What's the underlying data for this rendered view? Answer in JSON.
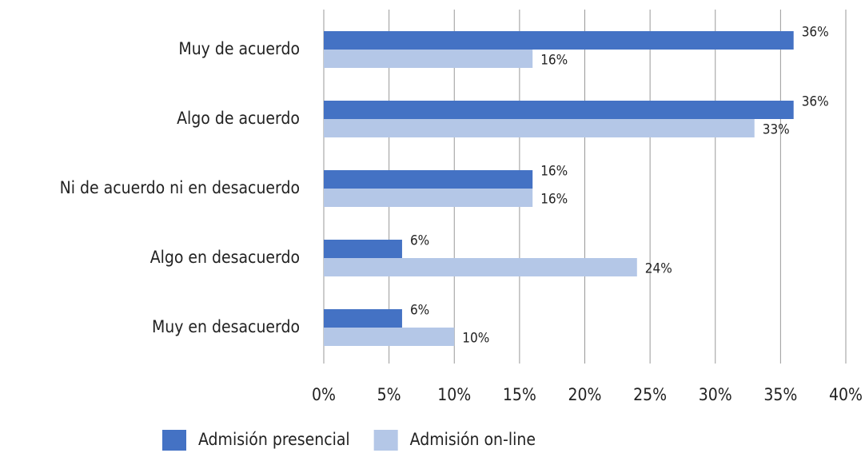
{
  "chart_data": {
    "type": "bar",
    "orientation": "horizontal",
    "categories": [
      "Muy de acuerdo",
      "Algo de acuerdo",
      "Ni de acuerdo ni en desacuerdo",
      "Algo en desacuerdo",
      "Muy en desacuerdo"
    ],
    "series": [
      {
        "name": "Admisión presencial",
        "color": "#4472c4",
        "values": [
          36,
          36,
          16,
          6,
          6
        ],
        "value_labels": [
          "36%",
          "36%",
          "16%",
          "6%",
          "6%"
        ]
      },
      {
        "name": "Admisión on-line",
        "color": "#b4c7e7",
        "values": [
          16,
          33,
          16,
          24,
          10
        ],
        "value_labels": [
          "16%",
          "33%",
          "16%",
          "24%",
          "10%"
        ]
      }
    ],
    "xlim": [
      0,
      40
    ],
    "xticks": [
      {
        "value": 0,
        "label": "0%"
      },
      {
        "value": 5,
        "label": "5%"
      },
      {
        "value": 10,
        "label": "10%"
      },
      {
        "value": 15,
        "label": "15%"
      },
      {
        "value": 20,
        "label": "20%"
      },
      {
        "value": 25,
        "label": "25%"
      },
      {
        "value": 30,
        "label": "30%"
      },
      {
        "value": 35,
        "label": "35%"
      },
      {
        "value": 40,
        "label": "40%"
      }
    ],
    "grid": true,
    "legend": "bottom"
  }
}
